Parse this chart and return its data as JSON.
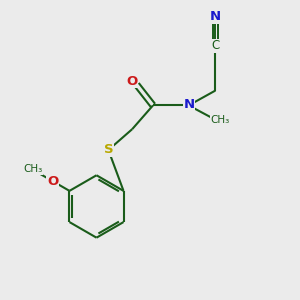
{
  "bg_color": "#ebebeb",
  "bond_color": "#1a5c1a",
  "N_color": "#1a1acc",
  "O_color": "#cc1a1a",
  "S_color": "#b8a800",
  "line_width": 1.5,
  "figsize": [
    3.0,
    3.0
  ],
  "dpi": 100,
  "xlim": [
    0,
    10
  ],
  "ylim": [
    0,
    10
  ]
}
